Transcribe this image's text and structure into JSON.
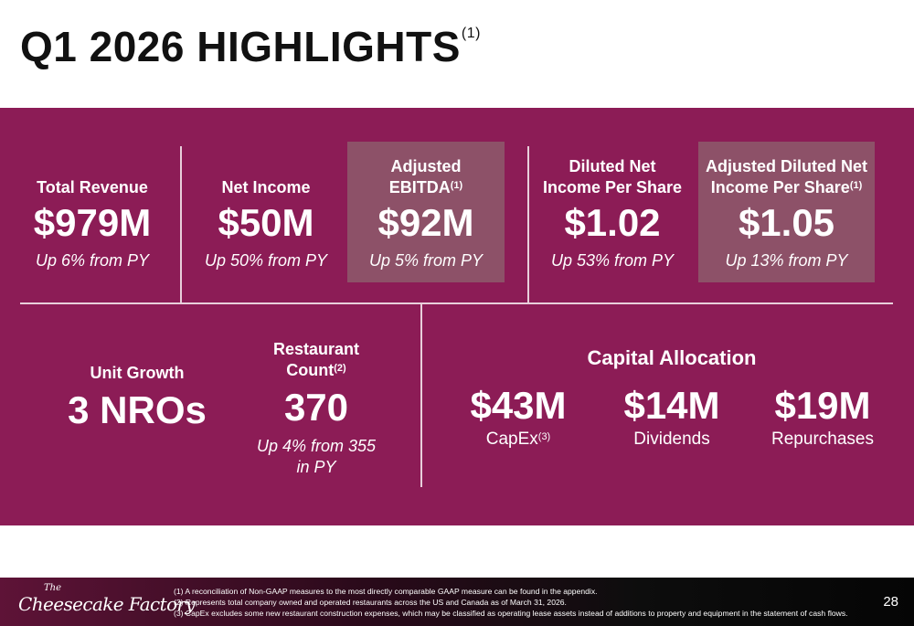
{
  "title": {
    "text": "Q1 2026 HIGHLIGHTS",
    "footnote": "(1)"
  },
  "metrics": [
    {
      "label": "Total Revenue",
      "value": "$979M",
      "change": "Up 6% from PY"
    },
    {
      "label": "Net Income",
      "value": "$50M",
      "change": "Up 50% from PY"
    },
    {
      "label_line1": "Adjusted",
      "label_line2": "EBITDA",
      "footnote": "(1)",
      "value": "$92M",
      "change": "Up 5% from PY"
    },
    {
      "label_line1": "Diluted Net",
      "label_line2": "Income Per Share",
      "value": "$1.02",
      "change": "Up 53% from PY"
    },
    {
      "label_line1": "Adjusted Diluted Net",
      "label_line2": "Income Per Share",
      "footnote": "(1)",
      "value": "$1.05",
      "change": "Up 13% from PY"
    }
  ],
  "unit_growth": {
    "label": "Unit Growth",
    "value": "3 NROs"
  },
  "restaurant_count": {
    "label_line1": "Restaurant",
    "label_line2": "Count",
    "footnote": "(2)",
    "value": "370",
    "change_line1": "Up 4% from 355",
    "change_line2": "in PY"
  },
  "capital_allocation": {
    "heading": "Capital Allocation",
    "items": [
      {
        "value": "$43M",
        "label": "CapEx",
        "footnote": "(3)"
      },
      {
        "value": "$14M",
        "label": "Dividends"
      },
      {
        "value": "$19M",
        "label": "Repurchases"
      }
    ]
  },
  "footer": {
    "logo_the": "The",
    "logo_name": "Cheesecake Factory",
    "notes": [
      "(1)  A reconciliation of Non-GAAP measures to the most directly comparable GAAP measure can be found in the appendix.",
      "(2)  Represents total company owned and operated restaurants across the US and Canada as of March 31, 2026.",
      "(3)  CapEx excludes some new restaurant construction expenses, which may be classified as operating lease assets instead of additions to property and equipment in the statement of cash flows."
    ],
    "page_number": "28"
  },
  "colors": {
    "panel": "#8c1c56",
    "highlight_box": "#8d5168",
    "divider": "#e8cfdb"
  }
}
